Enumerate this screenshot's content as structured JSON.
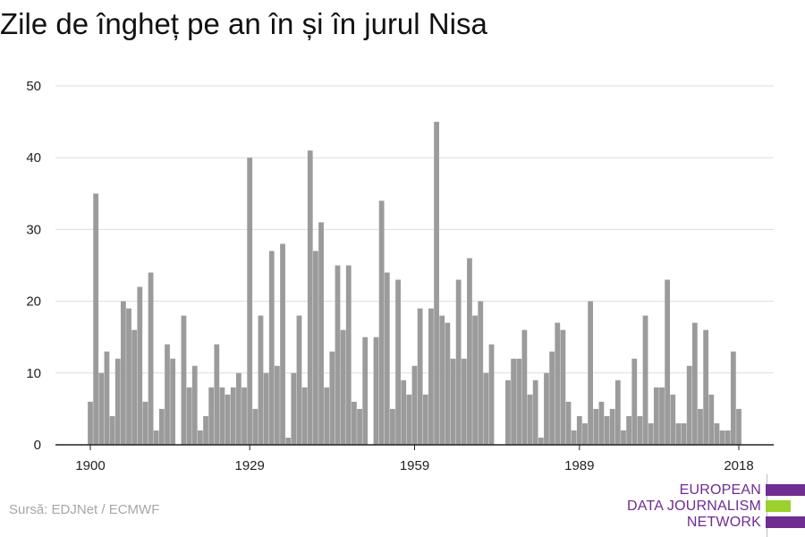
{
  "title": "Zile de îngheț pe an în și în jurul Nisa",
  "source": "Sursă: EDJNet / ECMWF",
  "logo": {
    "lines": [
      "EUROPEAN",
      "DATA JOURNALISM",
      "NETWORK"
    ],
    "colors": {
      "purple": "#6f2c91",
      "green": "#9bd12e"
    }
  },
  "colors": {
    "bar": "#9b9b9b",
    "grid": "#dddddd",
    "axis": "#222222"
  },
  "chart_data": {
    "type": "bar",
    "title": "Zile de îngheț pe an în și în jurul Nisa",
    "xlabel": "",
    "ylabel": "",
    "ylim": [
      0,
      50
    ],
    "yticks": [
      0,
      10,
      20,
      30,
      40,
      50
    ],
    "xticks": [
      1900,
      1929,
      1959,
      1989,
      2018
    ],
    "grid": true,
    "x": [
      1900,
      1901,
      1902,
      1903,
      1904,
      1905,
      1906,
      1907,
      1908,
      1909,
      1910,
      1911,
      1912,
      1913,
      1914,
      1915,
      1916,
      1917,
      1918,
      1919,
      1920,
      1921,
      1922,
      1923,
      1924,
      1925,
      1926,
      1927,
      1928,
      1929,
      1930,
      1931,
      1932,
      1933,
      1934,
      1935,
      1936,
      1937,
      1938,
      1939,
      1940,
      1941,
      1942,
      1943,
      1944,
      1945,
      1946,
      1947,
      1948,
      1949,
      1950,
      1951,
      1952,
      1953,
      1954,
      1955,
      1956,
      1957,
      1958,
      1959,
      1960,
      1961,
      1962,
      1963,
      1964,
      1965,
      1966,
      1967,
      1968,
      1969,
      1970,
      1971,
      1972,
      1973,
      1974,
      1975,
      1976,
      1977,
      1978,
      1979,
      1980,
      1981,
      1982,
      1983,
      1984,
      1985,
      1986,
      1987,
      1988,
      1989,
      1990,
      1991,
      1992,
      1993,
      1994,
      1995,
      1996,
      1997,
      1998,
      1999,
      2000,
      2001,
      2002,
      2003,
      2004,
      2005,
      2006,
      2007,
      2008,
      2009,
      2010,
      2011,
      2012,
      2013,
      2014,
      2015,
      2016,
      2017,
      2018
    ],
    "values": [
      6,
      35,
      10,
      13,
      4,
      12,
      20,
      19,
      16,
      22,
      6,
      24,
      2,
      5,
      14,
      12,
      0,
      18,
      8,
      11,
      2,
      4,
      8,
      14,
      8,
      7,
      8,
      10,
      8,
      40,
      5,
      18,
      10,
      27,
      11,
      28,
      1,
      10,
      18,
      8,
      41,
      27,
      31,
      8,
      13,
      25,
      16,
      25,
      6,
      5,
      15,
      0,
      15,
      34,
      24,
      5,
      23,
      9,
      7,
      11,
      19,
      7,
      19,
      45,
      18,
      17,
      12,
      23,
      12,
      26,
      18,
      20,
      10,
      14,
      0,
      0,
      9,
      12,
      12,
      16,
      7,
      9,
      1,
      10,
      13,
      17,
      16,
      6,
      2,
      4,
      3,
      20,
      5,
      6,
      4,
      5,
      9,
      2,
      4,
      12,
      4,
      18,
      3,
      8,
      8,
      23,
      7,
      3,
      3,
      11,
      17,
      5,
      16,
      7,
      3,
      2,
      2,
      13,
      5
    ]
  }
}
